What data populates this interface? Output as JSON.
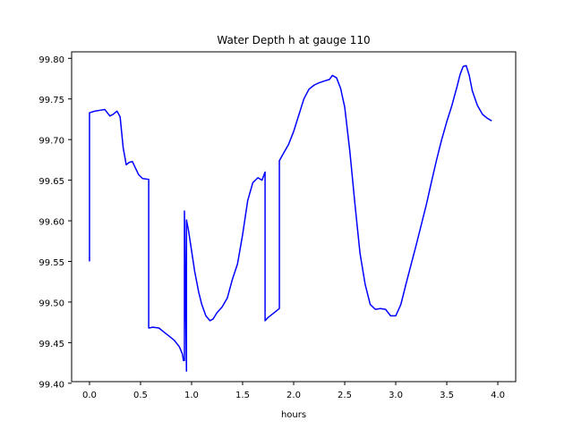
{
  "chart_data": {
    "type": "line",
    "title": "Water Depth h at gauge 110",
    "xlabel": "hours",
    "ylabel": "",
    "xlim": [
      -0.175,
      4.175
    ],
    "ylim": [
      99.402,
      99.808
    ],
    "xticks": [
      0.0,
      0.5,
      1.0,
      1.5,
      2.0,
      2.5,
      3.0,
      3.5,
      4.0
    ],
    "xtick_labels": [
      "0.0",
      "0.5",
      "1.0",
      "1.5",
      "2.0",
      "2.5",
      "3.0",
      "3.5",
      "4.0"
    ],
    "yticks": [
      99.4,
      99.45,
      99.5,
      99.55,
      99.6,
      99.65,
      99.7,
      99.75,
      99.8
    ],
    "ytick_labels": [
      "99.40",
      "99.45",
      "99.50",
      "99.55",
      "99.60",
      "99.65",
      "99.70",
      "99.75",
      "99.80"
    ],
    "grid": false,
    "series": [
      {
        "color": "#0000ff",
        "points": [
          [
            0.0,
            99.55
          ],
          [
            0.0,
            99.733
          ],
          [
            0.05,
            99.735
          ],
          [
            0.1,
            99.736
          ],
          [
            0.15,
            99.737
          ],
          [
            0.2,
            99.729
          ],
          [
            0.23,
            99.731
          ],
          [
            0.27,
            99.735
          ],
          [
            0.3,
            99.728
          ],
          [
            0.33,
            99.69
          ],
          [
            0.36,
            99.669
          ],
          [
            0.39,
            99.672
          ],
          [
            0.42,
            99.673
          ],
          [
            0.45,
            99.665
          ],
          [
            0.48,
            99.657
          ],
          [
            0.52,
            99.652
          ],
          [
            0.58,
            99.651
          ],
          [
            0.58,
            99.468
          ],
          [
            0.62,
            99.469
          ],
          [
            0.68,
            99.468
          ],
          [
            0.72,
            99.464
          ],
          [
            0.78,
            99.458
          ],
          [
            0.83,
            99.453
          ],
          [
            0.88,
            99.445
          ],
          [
            0.91,
            99.436
          ],
          [
            0.92,
            99.428
          ],
          [
            0.93,
            99.428
          ],
          [
            0.93,
            99.612
          ],
          [
            0.95,
            99.415
          ],
          [
            0.95,
            99.601
          ],
          [
            0.97,
            99.588
          ],
          [
            1.0,
            99.563
          ],
          [
            1.03,
            99.538
          ],
          [
            1.07,
            99.512
          ],
          [
            1.1,
            99.497
          ],
          [
            1.14,
            99.483
          ],
          [
            1.18,
            99.477
          ],
          [
            1.21,
            99.479
          ],
          [
            1.25,
            99.487
          ],
          [
            1.3,
            99.494
          ],
          [
            1.35,
            99.505
          ],
          [
            1.4,
            99.528
          ],
          [
            1.45,
            99.547
          ],
          [
            1.5,
            99.583
          ],
          [
            1.55,
            99.625
          ],
          [
            1.6,
            99.647
          ],
          [
            1.65,
            99.653
          ],
          [
            1.69,
            99.65
          ],
          [
            1.72,
            99.66
          ],
          [
            1.72,
            99.477
          ],
          [
            1.75,
            99.481
          ],
          [
            1.8,
            99.486
          ],
          [
            1.86,
            99.492
          ],
          [
            1.86,
            99.674
          ],
          [
            1.9,
            99.683
          ],
          [
            1.95,
            99.694
          ],
          [
            2.0,
            99.71
          ],
          [
            2.05,
            99.73
          ],
          [
            2.1,
            99.75
          ],
          [
            2.15,
            99.762
          ],
          [
            2.2,
            99.767
          ],
          [
            2.25,
            99.77
          ],
          [
            2.3,
            99.772
          ],
          [
            2.35,
            99.774
          ],
          [
            2.38,
            99.779
          ],
          [
            2.42,
            99.776
          ],
          [
            2.46,
            99.763
          ],
          [
            2.5,
            99.74
          ],
          [
            2.55,
            99.686
          ],
          [
            2.6,
            99.621
          ],
          [
            2.65,
            99.56
          ],
          [
            2.7,
            99.522
          ],
          [
            2.75,
            99.497
          ],
          [
            2.8,
            99.491
          ],
          [
            2.85,
            99.492
          ],
          [
            2.9,
            99.491
          ],
          [
            2.95,
            99.483
          ],
          [
            3.0,
            99.483
          ],
          [
            3.05,
            99.497
          ],
          [
            3.1,
            99.522
          ],
          [
            3.15,
            99.546
          ],
          [
            3.2,
            99.57
          ],
          [
            3.25,
            99.595
          ],
          [
            3.3,
            99.62
          ],
          [
            3.35,
            99.648
          ],
          [
            3.4,
            99.675
          ],
          [
            3.45,
            99.7
          ],
          [
            3.5,
            99.722
          ],
          [
            3.55,
            99.742
          ],
          [
            3.6,
            99.765
          ],
          [
            3.63,
            99.78
          ],
          [
            3.66,
            99.79
          ],
          [
            3.69,
            99.791
          ],
          [
            3.72,
            99.779
          ],
          [
            3.75,
            99.76
          ],
          [
            3.8,
            99.742
          ],
          [
            3.85,
            99.731
          ],
          [
            3.9,
            99.726
          ],
          [
            3.94,
            99.723
          ]
        ]
      }
    ]
  }
}
